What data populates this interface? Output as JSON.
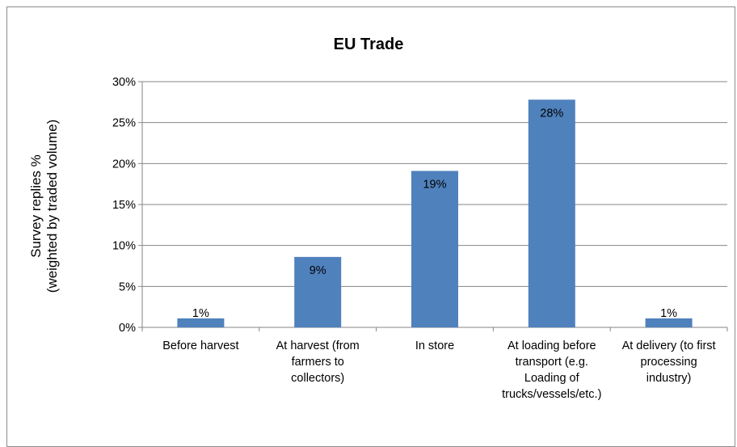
{
  "chart_data": {
    "type": "bar",
    "title": "EU Trade",
    "xlabel": "",
    "ylabel": "Survey replies %\n(weighted by traded volume)",
    "categories": [
      "Before harvest",
      "At harvest (from farmers to collectors)",
      "In store",
      "At loading before transport (e.g. Loading of trucks/vessels/etc.)",
      "At delivery (to first processing industry)"
    ],
    "category_lines": [
      [
        "Before harvest"
      ],
      [
        "At harvest (from",
        "farmers to",
        "collectors)"
      ],
      [
        "In store"
      ],
      [
        "At loading before",
        "transport (e.g.",
        "Loading of",
        "trucks/vessels/etc.)"
      ],
      [
        "At delivery (to first",
        "processing",
        "industry)"
      ]
    ],
    "values": [
      1.1,
      8.6,
      19.1,
      27.8,
      1.1
    ],
    "data_labels": [
      "1%",
      "9%",
      "19%",
      "28%",
      "1%"
    ],
    "ylim": [
      0,
      30
    ],
    "yticks": [
      0,
      5,
      10,
      15,
      20,
      25,
      30
    ],
    "ytick_labels": [
      "0%",
      "5%",
      "10%",
      "15%",
      "20%",
      "25%",
      "30%"
    ],
    "grid": true,
    "legend": "none",
    "bar_color": "#4f81bd"
  }
}
